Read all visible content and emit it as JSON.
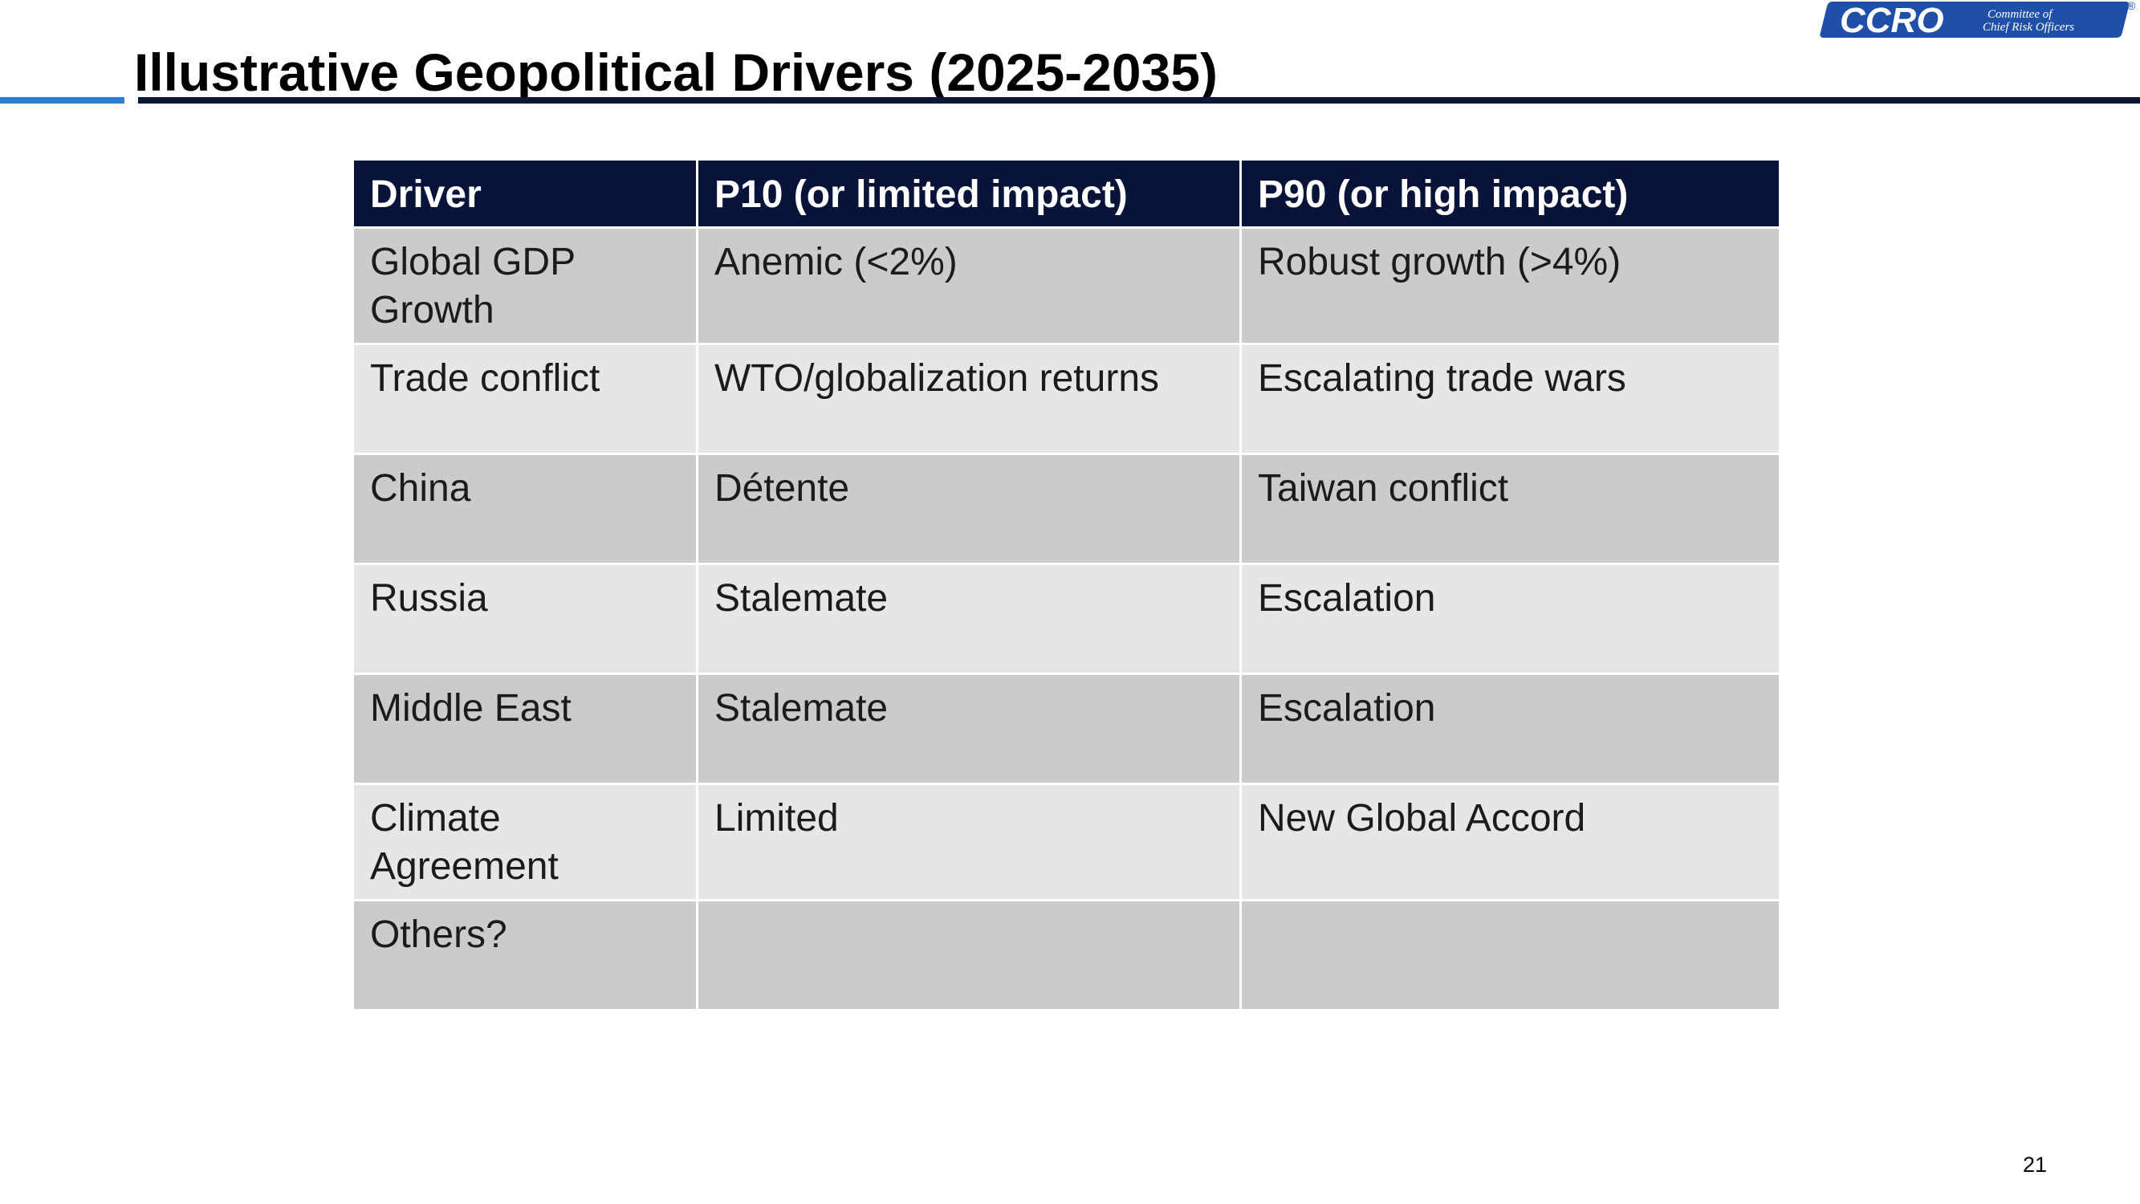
{
  "slide": {
    "title": "Illustrative Geopolitical Drivers (2025-2035)",
    "page_number": "21"
  },
  "logo": {
    "wordmark": "CCRO",
    "tagline_line1": "Committee of",
    "tagline_line2": "Chief Risk Officers",
    "registered_mark": "®",
    "color": "#1f4fa8"
  },
  "colors": {
    "header_bg": "#08133a",
    "row_dark": "#cbcbcd",
    "row_light": "#e6e6e6",
    "accent_blue": "#2a7fd0",
    "rule_navy": "#0b1738"
  },
  "table": {
    "headers": [
      "Driver",
      "P10 (or limited impact)",
      "P90 (or high impact)"
    ],
    "rows": [
      [
        "Global GDP Growth",
        "Anemic (<2%)",
        "Robust growth (>4%)"
      ],
      [
        "Trade conflict",
        "WTO/globalization returns",
        "Escalating trade wars"
      ],
      [
        "China",
        "Détente",
        "Taiwan conflict"
      ],
      [
        "Russia",
        "Stalemate",
        "Escalation"
      ],
      [
        "Middle East",
        "Stalemate",
        "Escalation"
      ],
      [
        "Climate Agreement",
        "Limited",
        "New Global Accord"
      ],
      [
        "Others?",
        "",
        ""
      ]
    ]
  }
}
